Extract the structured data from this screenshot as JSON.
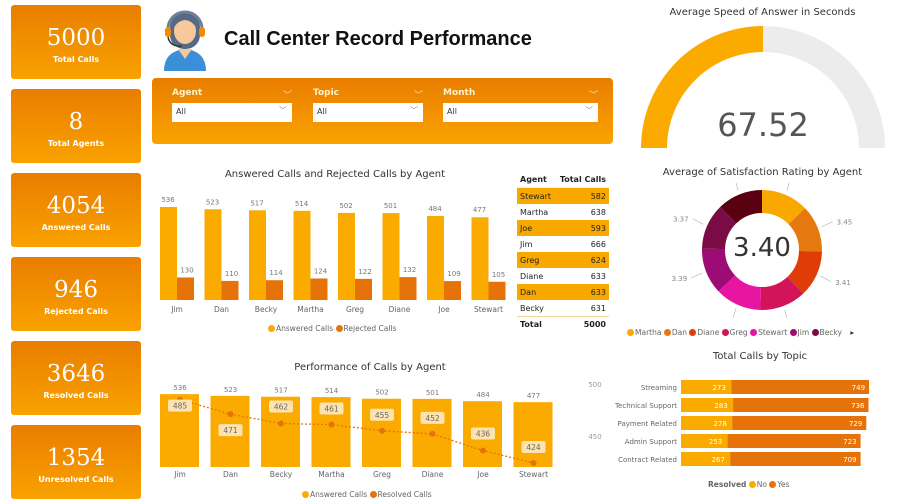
{
  "kpis": [
    {
      "value": "5000",
      "label": "Total Calls"
    },
    {
      "value": "8",
      "label": "Total Agents"
    },
    {
      "value": "4054",
      "label": "Answered Calls"
    },
    {
      "value": "946",
      "label": "Rejected Calls"
    },
    {
      "value": "3646",
      "label": "Resolved Calls"
    },
    {
      "value": "1354",
      "label": "Unresolved Calls"
    }
  ],
  "header": {
    "title": "Call Center Record Performance",
    "icon": "call-center-agent-headset-icon"
  },
  "filters": [
    {
      "label": "Agent",
      "value": "All"
    },
    {
      "label": "Topic",
      "value": "All"
    },
    {
      "label": "Month",
      "value": "All"
    }
  ],
  "colors": {
    "answered": "#fbab00",
    "rejected": "#e6730a",
    "accent": "#f28a00"
  },
  "table": {
    "headers": [
      "Agent",
      "Total Calls"
    ],
    "rows": [
      [
        "Stewart",
        "582"
      ],
      [
        "Martha",
        "638"
      ],
      [
        "Joe",
        "593"
      ],
      [
        "Jim",
        "666"
      ],
      [
        "Greg",
        "624"
      ],
      [
        "Diane",
        "633"
      ],
      [
        "Dan",
        "633"
      ],
      [
        "Becky",
        "631"
      ]
    ],
    "total": [
      "Total",
      "5000"
    ]
  },
  "chart_data": [
    {
      "type": "bar",
      "title": "Answered Calls and Rejected Calls by Agent",
      "categories": [
        "Jim",
        "Dan",
        "Becky",
        "Martha",
        "Greg",
        "Diane",
        "Joe",
        "Stewart"
      ],
      "series": [
        {
          "name": "Answered Calls",
          "values": [
            536,
            523,
            517,
            514,
            502,
            501,
            484,
            477
          ]
        },
        {
          "name": "Rejected Calls",
          "values": [
            130,
            110,
            114,
            124,
            122,
            132,
            109,
            105
          ]
        }
      ],
      "legend": "bottom"
    },
    {
      "type": "bar",
      "title": "Performance of Calls by Agent",
      "categories": [
        "Jim",
        "Dan",
        "Becky",
        "Martha",
        "Greg",
        "Diane",
        "Joe",
        "Stewart"
      ],
      "series": [
        {
          "name": "Answered Calls",
          "values": [
            536,
            523,
            517,
            514,
            502,
            501,
            484,
            477
          ]
        },
        {
          "name": "Resolved Calls",
          "type": "line",
          "values": [
            485,
            471,
            462,
            461,
            455,
            452,
            436,
            424
          ]
        }
      ],
      "y2_ticks": [
        "500",
        "450"
      ],
      "legend": "bottom"
    },
    {
      "type": "gauge",
      "title": "Average Speed of Answer in Seconds",
      "value": "67.52",
      "fill_fraction": 0.5
    },
    {
      "type": "pie",
      "title": "Average of Satisfaction Rating by Agent",
      "center_label": "3.40",
      "categories": [
        "Martha",
        "Dan",
        "Diane",
        "Greg",
        "Stewart",
        "Jim",
        "Becky",
        "Joe"
      ],
      "values": [
        3.47,
        3.45,
        3.41,
        3.4,
        3.4,
        3.39,
        3.37,
        3.33
      ],
      "labels": [
        "3.47",
        "3.45",
        "3.41",
        "3.40",
        "3.40",
        "3.39",
        "3.37",
        "3.33"
      ],
      "colors": [
        "#f9a800",
        "#e6790e",
        "#e03c0a",
        "#d4145a",
        "#e815a0",
        "#9c0c74",
        "#7a0b45",
        "#5a0010"
      ],
      "legend_visible": [
        "Martha",
        "Dan",
        "Diane",
        "Greg",
        "Stewart",
        "Jim",
        "Becky"
      ],
      "legend": "bottom"
    },
    {
      "type": "bar",
      "orientation": "horizontal",
      "stacked": true,
      "title": "Total Calls by Topic",
      "categories": [
        "Streaming",
        "Technical Support",
        "Payment Related",
        "Admin Support",
        "Contract Related"
      ],
      "legend_title": "Resolved",
      "series": [
        {
          "name": "No",
          "values": [
            273,
            283,
            278,
            253,
            267
          ]
        },
        {
          "name": "Yes",
          "values": [
            749,
            736,
            729,
            723,
            709
          ]
        }
      ],
      "legend": "bottom"
    }
  ]
}
